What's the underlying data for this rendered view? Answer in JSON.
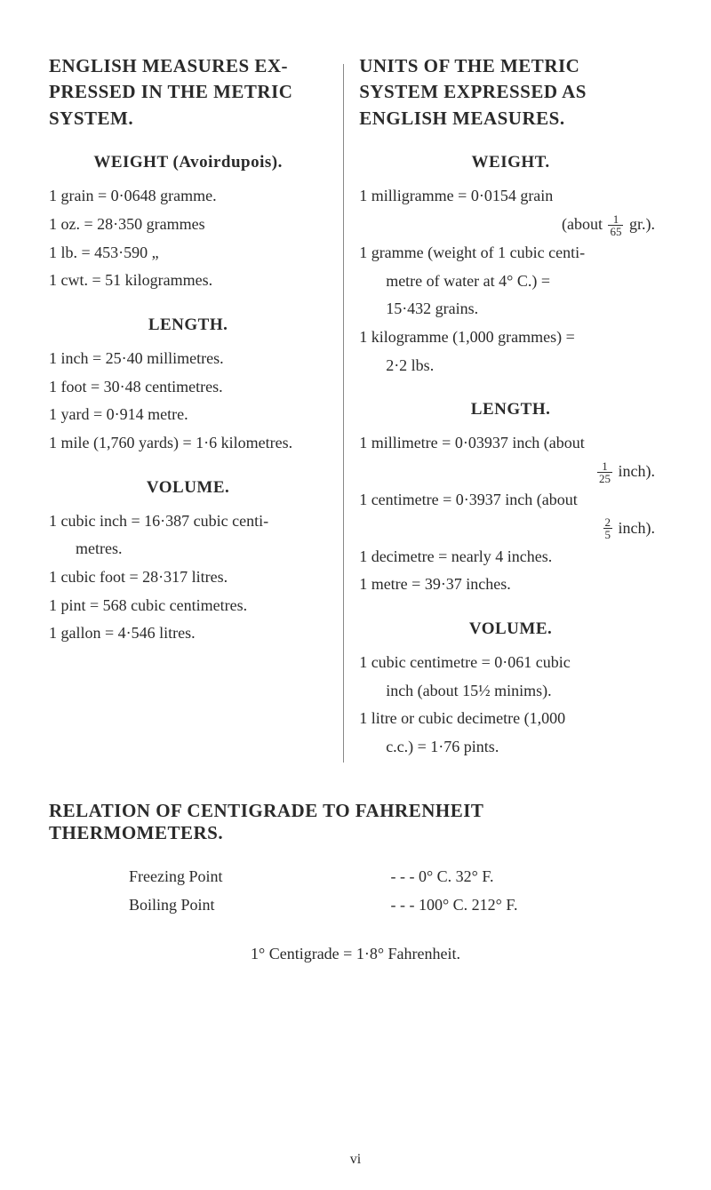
{
  "left": {
    "title": "ENGLISH MEASURES EX-PRESSED IN THE METRIC SYSTEM.",
    "weight": {
      "heading": "WEIGHT (Avoirdupois).",
      "l1": "1 grain = 0·0648 gramme.",
      "l2": "1 oz. = 28·350 grammes",
      "l3": "1 lb. = 453·590     „",
      "l4": "1 cwt. = 51 kilogrammes."
    },
    "length": {
      "heading": "LENGTH.",
      "l1": "1 inch = 25·40 millimetres.",
      "l2": "1 foot = 30·48 centimetres.",
      "l3": "1 yard = 0·914 metre.",
      "l4": "1 mile (1,760 yards) = 1·6 kilometres."
    },
    "volume": {
      "heading": "VOLUME.",
      "l1a": "1 cubic inch = 16·387 cubic centi-",
      "l1b": "metres.",
      "l2": "1 cubic foot = 28·317 litres.",
      "l3": "1 pint = 568 cubic centimetres.",
      "l4": "1 gallon = 4·546 litres."
    }
  },
  "right": {
    "title": "UNITS OF THE METRIC SYSTEM EXPRESSED AS ENGLISH MEASURES.",
    "weight": {
      "heading": "WEIGHT.",
      "l1a": "1    milligramme = 0·0154    grain",
      "l1b_pre": "(about ",
      "l1b_num": "1",
      "l1b_den": "65",
      "l1b_post": " gr.).",
      "l2a": "1 gramme (weight of 1 cubic centi-",
      "l2b": "metre of water at 4° C.) =",
      "l2c": "15·432 grains.",
      "l3a": "1 kilogramme (1,000 grammes) =",
      "l3b": "2·2 lbs."
    },
    "length": {
      "heading": "LENGTH.",
      "l1a": "1 millimetre = 0·03937 inch (about",
      "l1b_num": "1",
      "l1b_den": "25",
      "l1b_post": " inch).",
      "l2a": "1 centimetre = 0·3937 inch (about",
      "l2b_num": "2",
      "l2b_den": "5",
      "l2b_post": " inch).",
      "l3": "1 decimetre = nearly 4 inches.",
      "l4": "1 metre = 39·37 inches."
    },
    "volume": {
      "heading": "VOLUME.",
      "l1a": "1 cubic centimetre = 0·061 cubic",
      "l1b": "inch (about 15½ minims).",
      "l2a": "1 litre or cubic decimetre (1,000",
      "l2b": "c.c.) = 1·76 pints."
    }
  },
  "relation": {
    "title": "RELATION OF CENTIGRADE TO FAHRENHEIT THERMOMETERS.",
    "freezing_label": "Freezing Point",
    "freezing_val": "-      -      -      0° C.   32° F.",
    "boiling_label": "Boiling Point",
    "boiling_val": "-      -      -   100° C. 212° F.",
    "conversion": "1° Centigrade = 1·8° Fahrenheit."
  },
  "page_num": "vi",
  "colors": {
    "background": "#ffffff",
    "text": "#2a2a2a",
    "divider": "#888888"
  },
  "typography": {
    "body_fontsize": 18,
    "title_fontsize": 21,
    "subtitle_fontsize": 19,
    "font_family": "Georgia, Times New Roman, serif"
  }
}
